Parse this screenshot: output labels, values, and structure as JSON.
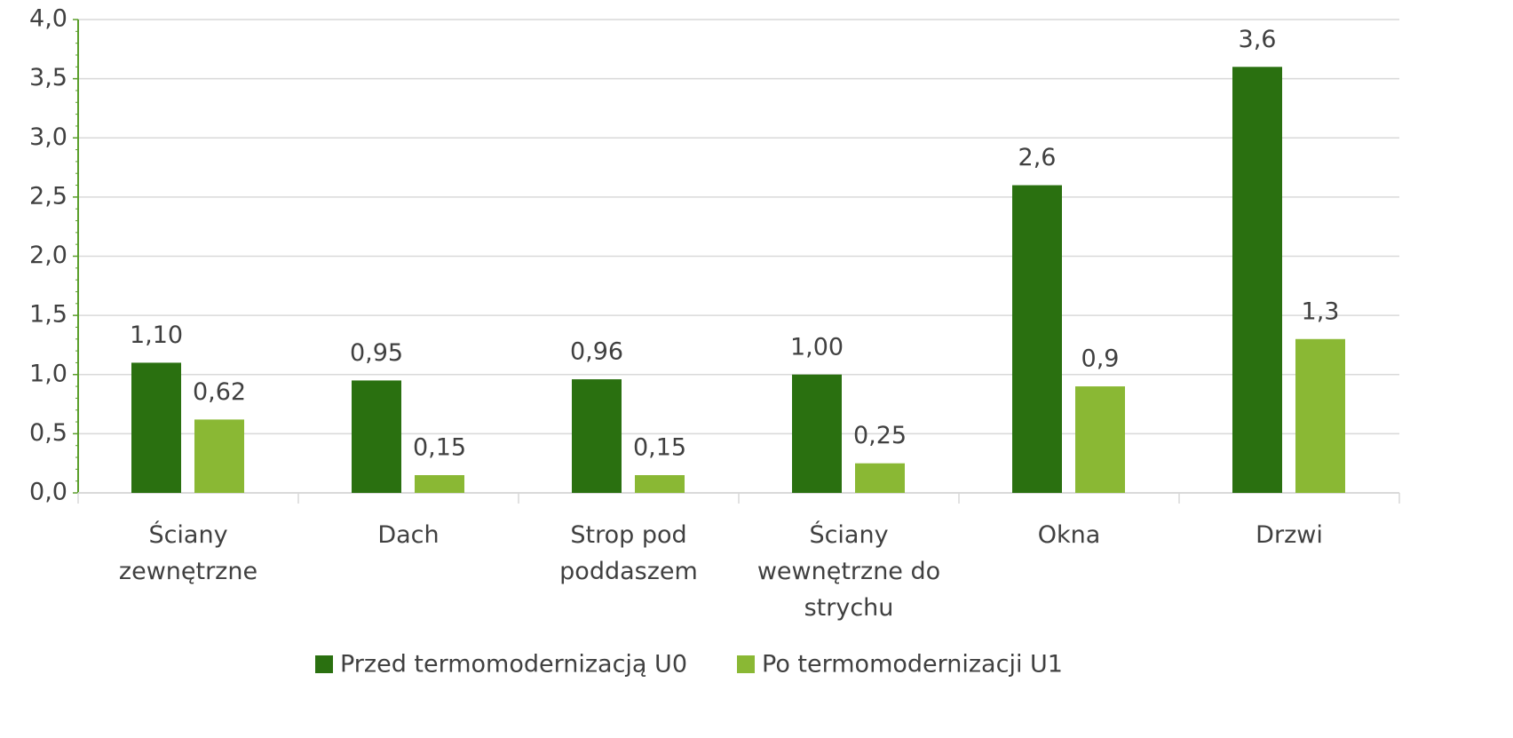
{
  "chart_data": {
    "type": "bar",
    "categories": [
      "Ściany zewnętrzne",
      "Dach",
      "Strop pod poddaszem",
      "Ściany wewnętrzne do strychu",
      "Okna",
      "Drzwi"
    ],
    "series": [
      {
        "name": "Przed termomodernizacją U0",
        "color": "#2a7010",
        "values": [
          1.1,
          0.95,
          0.96,
          1.0,
          2.6,
          3.6
        ],
        "value_labels": [
          "1,10",
          "0,95",
          "0,96",
          "1,00",
          "2,6",
          "3,6"
        ]
      },
      {
        "name": "Po termomodernizacji U1",
        "color": "#8ab834",
        "values": [
          0.62,
          0.15,
          0.15,
          0.25,
          0.9,
          1.3
        ],
        "value_labels": [
          "0,62",
          "0,15",
          "0,15",
          "0,25",
          "0,9",
          "1,3"
        ]
      }
    ],
    "ylim": [
      0,
      4
    ],
    "yticks": [
      {
        "value": 0,
        "label": "0,0"
      },
      {
        "value": 0.5,
        "label": "0,5"
      },
      {
        "value": 1,
        "label": "1,0"
      },
      {
        "value": 1.5,
        "label": "1,5"
      },
      {
        "value": 2,
        "label": "2,0"
      },
      {
        "value": 2.5,
        "label": "2,5"
      },
      {
        "value": 3,
        "label": "3,0"
      },
      {
        "value": 3.5,
        "label": "3,5"
      },
      {
        "value": 4,
        "label": "4,0"
      }
    ],
    "grid": true,
    "legend": "bottom"
  }
}
